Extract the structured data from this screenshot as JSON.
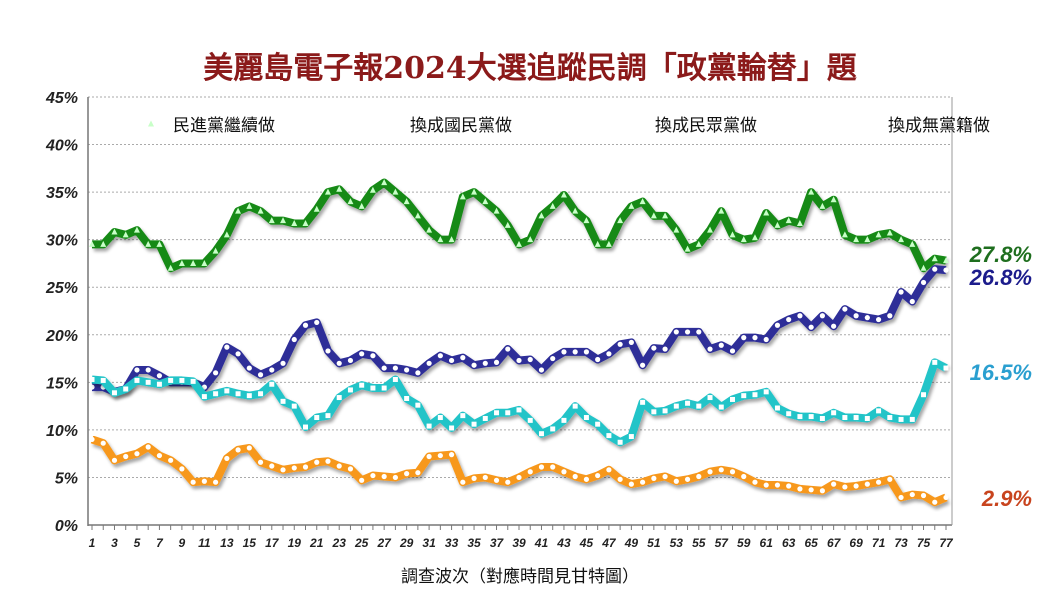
{
  "chart_data": {
    "type": "line",
    "title": "美麗島電子報2024大選追蹤民調「政黨輪替」題",
    "xlabel": "調查波次（對應時間見甘特圖）",
    "ylabel": "",
    "ylim": [
      0,
      45
    ],
    "yticks": [
      "0%",
      "5%",
      "10%",
      "15%",
      "20%",
      "25%",
      "30%",
      "35%",
      "40%",
      "45%"
    ],
    "xticks": [
      "1",
      "3",
      "5",
      "7",
      "9",
      "11",
      "13",
      "15",
      "17",
      "19",
      "21",
      "23",
      "25",
      "27",
      "29",
      "31",
      "33",
      "35",
      "37",
      "39",
      "41",
      "43",
      "45",
      "47",
      "49",
      "51",
      "53",
      "55",
      "57",
      "59",
      "61",
      "63",
      "65",
      "67",
      "69",
      "71",
      "73",
      "75",
      "77"
    ],
    "x_range": [
      1,
      77
    ],
    "grid": "horizontal dotted",
    "legend_placement": "top",
    "series": [
      {
        "name": "民進黨繼續做",
        "color": "#178a17",
        "marker": "triangle",
        "end_label": "27.8%",
        "label_color": "#1e6e1e",
        "values": [
          29.5,
          29.5,
          30.8,
          30.5,
          31,
          29.5,
          29.5,
          27,
          27.5,
          27.5,
          27.5,
          28.8,
          30.5,
          33,
          33.5,
          33,
          32,
          32,
          31.7,
          31.7,
          33.2,
          35,
          35.3,
          34,
          33.5,
          35.2,
          36,
          35,
          34,
          32.5,
          31,
          30,
          30,
          34.5,
          35,
          34,
          33,
          31.5,
          29.5,
          30,
          32.5,
          33.5,
          34.7,
          33,
          32,
          29.5,
          29.5,
          32,
          33.5,
          34,
          32.5,
          32.5,
          31,
          29,
          29.5,
          31,
          33,
          30.5,
          30,
          30.2,
          32.8,
          31.5,
          32,
          31.7,
          35,
          33.5,
          34.2,
          30.5,
          30,
          30,
          30.5,
          30.7,
          30,
          29.5,
          27,
          28,
          27.8
        ]
      },
      {
        "name": "換成國民黨做",
        "color": "#2e2e98",
        "marker": "circle",
        "end_label": "26.8%",
        "label_color": "#1c1c8c",
        "values": [
          14.5,
          14.5,
          14,
          14.3,
          16.3,
          16.3,
          15.7,
          15,
          15,
          15,
          14.5,
          16,
          18.7,
          18,
          16.5,
          15.8,
          16.3,
          17,
          19.5,
          21,
          21.3,
          18.3,
          17,
          17.3,
          18,
          17.8,
          16.5,
          16.5,
          16.3,
          16,
          17,
          17.8,
          17.3,
          17.6,
          16.8,
          17,
          17.1,
          18.5,
          17.3,
          17.4,
          16.3,
          17.5,
          18.2,
          18.2,
          18.2,
          17.4,
          18,
          19,
          19.2,
          16.8,
          18.6,
          18.5,
          20.3,
          20.3,
          20.3,
          18.5,
          18.9,
          18.3,
          19.7,
          19.7,
          19.5,
          21,
          21.6,
          22,
          20.8,
          22,
          20.9,
          22.7,
          22,
          21.8,
          21.6,
          22,
          24.5,
          23.5,
          25.5,
          26.9,
          26.8
        ]
      },
      {
        "name": "換成民眾黨做",
        "color": "#22c4c8",
        "marker": "square",
        "end_label": "16.5%",
        "label_color": "#2a9fd0",
        "values": [
          15.3,
          15.2,
          13.9,
          14.3,
          15.2,
          15,
          14.8,
          15.2,
          15.2,
          15.1,
          13.5,
          13.8,
          14.1,
          13.8,
          13.6,
          13.8,
          14.8,
          13,
          12.5,
          10.3,
          11.3,
          11.5,
          13.4,
          14.2,
          14.7,
          14.4,
          14.4,
          15.3,
          13.3,
          12.6,
          10.4,
          11.3,
          10.2,
          11.5,
          10.6,
          11.2,
          11.8,
          11.8,
          12.1,
          11,
          9.6,
          10.1,
          11,
          12.5,
          11.3,
          10.6,
          9.4,
          8.7,
          9.3,
          12.9,
          11.9,
          12,
          12.5,
          12.8,
          12.5,
          13.4,
          12.4,
          13.2,
          13.6,
          13.7,
          14,
          12.3,
          11.7,
          11.4,
          11.4,
          11.2,
          11.8,
          11.3,
          11.3,
          11.2,
          12,
          11.3,
          11.1,
          11.1,
          13.7,
          17.1,
          16.5
        ]
      },
      {
        "name": "換成無黨籍做",
        "color": "#f7981d",
        "marker": "diamond",
        "end_label": "2.9%",
        "label_color": "#c8441e",
        "values": [
          9,
          8.6,
          6.8,
          7.2,
          7.5,
          8.2,
          7.3,
          6.8,
          5.9,
          4.5,
          4.6,
          4.5,
          7,
          7.9,
          8.1,
          6.6,
          6.2,
          5.8,
          6,
          6.1,
          6.6,
          6.7,
          6.2,
          5.9,
          4.7,
          5.2,
          5.1,
          5,
          5.4,
          5.5,
          7.2,
          7.3,
          7.4,
          4.5,
          4.9,
          5,
          4.7,
          4.5,
          5,
          5.6,
          6.1,
          6.1,
          5.6,
          5.1,
          4.8,
          5.2,
          5.8,
          4.8,
          4.3,
          4.5,
          4.9,
          5.1,
          4.6,
          4.8,
          5.1,
          5.6,
          5.8,
          5.6,
          5.1,
          4.5,
          4.2,
          4.2,
          4.1,
          3.8,
          3.7,
          3.6,
          4.3,
          4,
          4.1,
          4.3,
          4.5,
          4.8,
          2.9,
          3.2,
          3.1,
          2.4,
          2.9
        ]
      }
    ]
  }
}
